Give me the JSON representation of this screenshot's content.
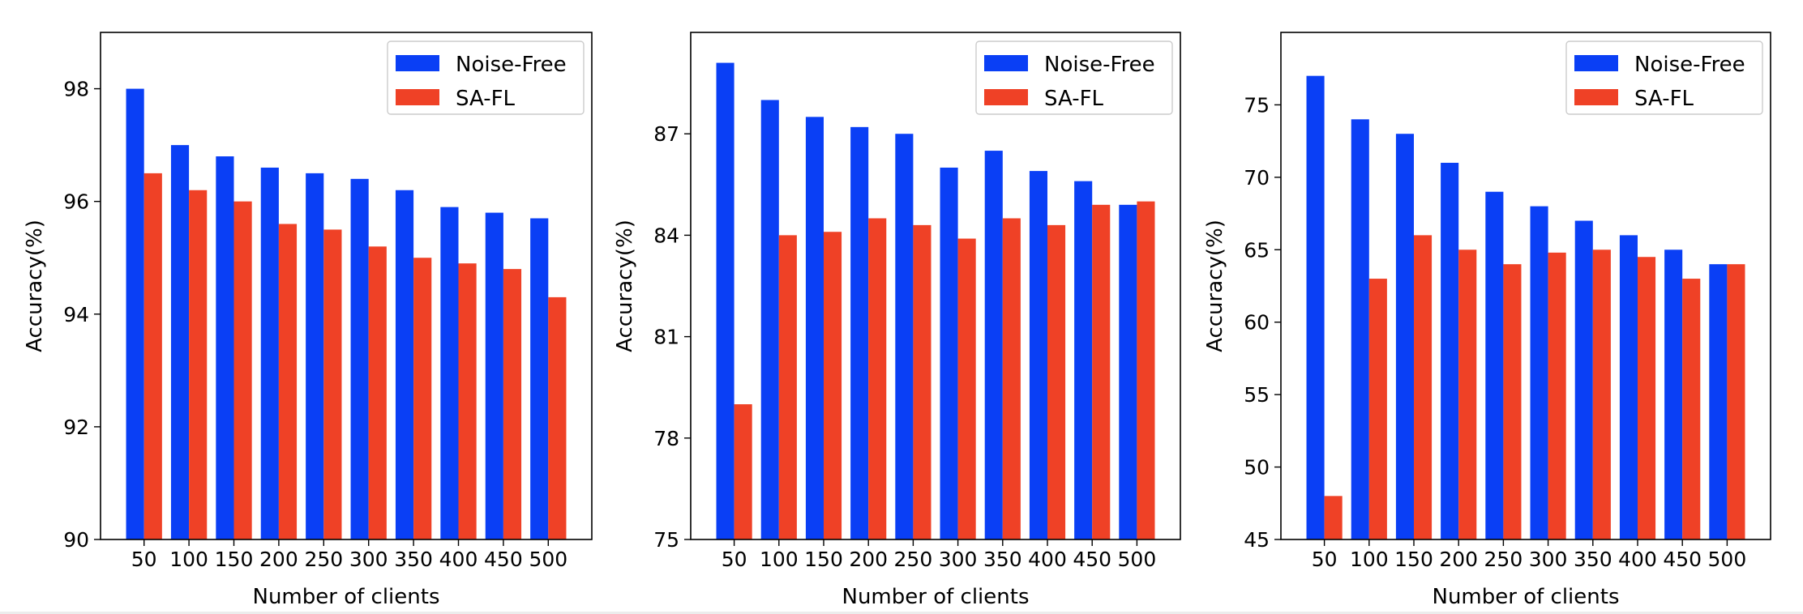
{
  "colors": {
    "noise_free": "#0a3ff5",
    "sa_fl": "#ef4126"
  },
  "chart_data": [
    {
      "type": "bar",
      "categories": [
        "50",
        "100",
        "150",
        "200",
        "250",
        "300",
        "350",
        "400",
        "450",
        "500"
      ],
      "series": [
        {
          "name": "Noise-Free",
          "values": [
            98.0,
            97.0,
            96.8,
            96.6,
            96.5,
            96.4,
            96.2,
            95.9,
            95.8,
            95.7
          ]
        },
        {
          "name": "SA-FL",
          "values": [
            96.5,
            96.2,
            96.0,
            95.6,
            95.5,
            95.2,
            95.0,
            94.9,
            94.8,
            94.3
          ]
        }
      ],
      "xlabel": "Number of clients",
      "ylabel": "Accuracy(%)",
      "ylim": [
        90,
        99
      ],
      "yticks": [
        90,
        92,
        94,
        96,
        98
      ],
      "legend": "top-right",
      "grid": false
    },
    {
      "type": "bar",
      "categories": [
        "50",
        "100",
        "150",
        "200",
        "250",
        "300",
        "350",
        "400",
        "450",
        "500"
      ],
      "series": [
        {
          "name": "Noise-Free",
          "values": [
            89.1,
            88.0,
            87.5,
            87.2,
            87.0,
            86.0,
            86.5,
            85.9,
            85.6,
            84.9
          ]
        },
        {
          "name": "SA-FL",
          "values": [
            79.0,
            84.0,
            84.1,
            84.5,
            84.3,
            83.9,
            84.5,
            84.3,
            84.9,
            85.0
          ]
        }
      ],
      "xlabel": "Number of clients",
      "ylabel": "Accuracy(%)",
      "ylim": [
        75,
        90
      ],
      "yticks": [
        75,
        78,
        81,
        84,
        87
      ],
      "legend": "top-right",
      "grid": false
    },
    {
      "type": "bar",
      "categories": [
        "50",
        "100",
        "150",
        "200",
        "250",
        "300",
        "350",
        "400",
        "450",
        "500"
      ],
      "series": [
        {
          "name": "Noise-Free",
          "values": [
            77.0,
            74.0,
            73.0,
            71.0,
            69.0,
            68.0,
            67.0,
            66.0,
            65.0,
            64.0
          ]
        },
        {
          "name": "SA-FL",
          "values": [
            48.0,
            63.0,
            66.0,
            65.0,
            64.0,
            64.8,
            65.0,
            64.5,
            63.0,
            64.0
          ]
        }
      ],
      "xlabel": "Number of clients",
      "ylabel": "Accuracy(%)",
      "ylim": [
        45,
        80
      ],
      "yticks": [
        45,
        50,
        55,
        60,
        65,
        70,
        75
      ],
      "legend": "top-right",
      "grid": false
    }
  ]
}
